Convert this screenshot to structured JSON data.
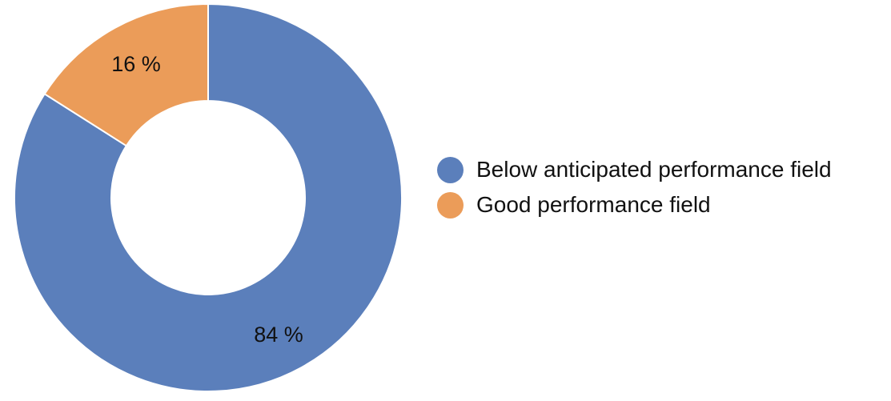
{
  "chart_data": {
    "type": "pie",
    "variant": "donut",
    "title": "",
    "categories": [
      "Below anticipated performance field",
      "Good performance field"
    ],
    "values": [
      84,
      16
    ],
    "data_labels": [
      "84 %",
      "16 %"
    ],
    "colors": [
      "#5b7fbb",
      "#eb9c59"
    ],
    "legend_placement": "right"
  }
}
